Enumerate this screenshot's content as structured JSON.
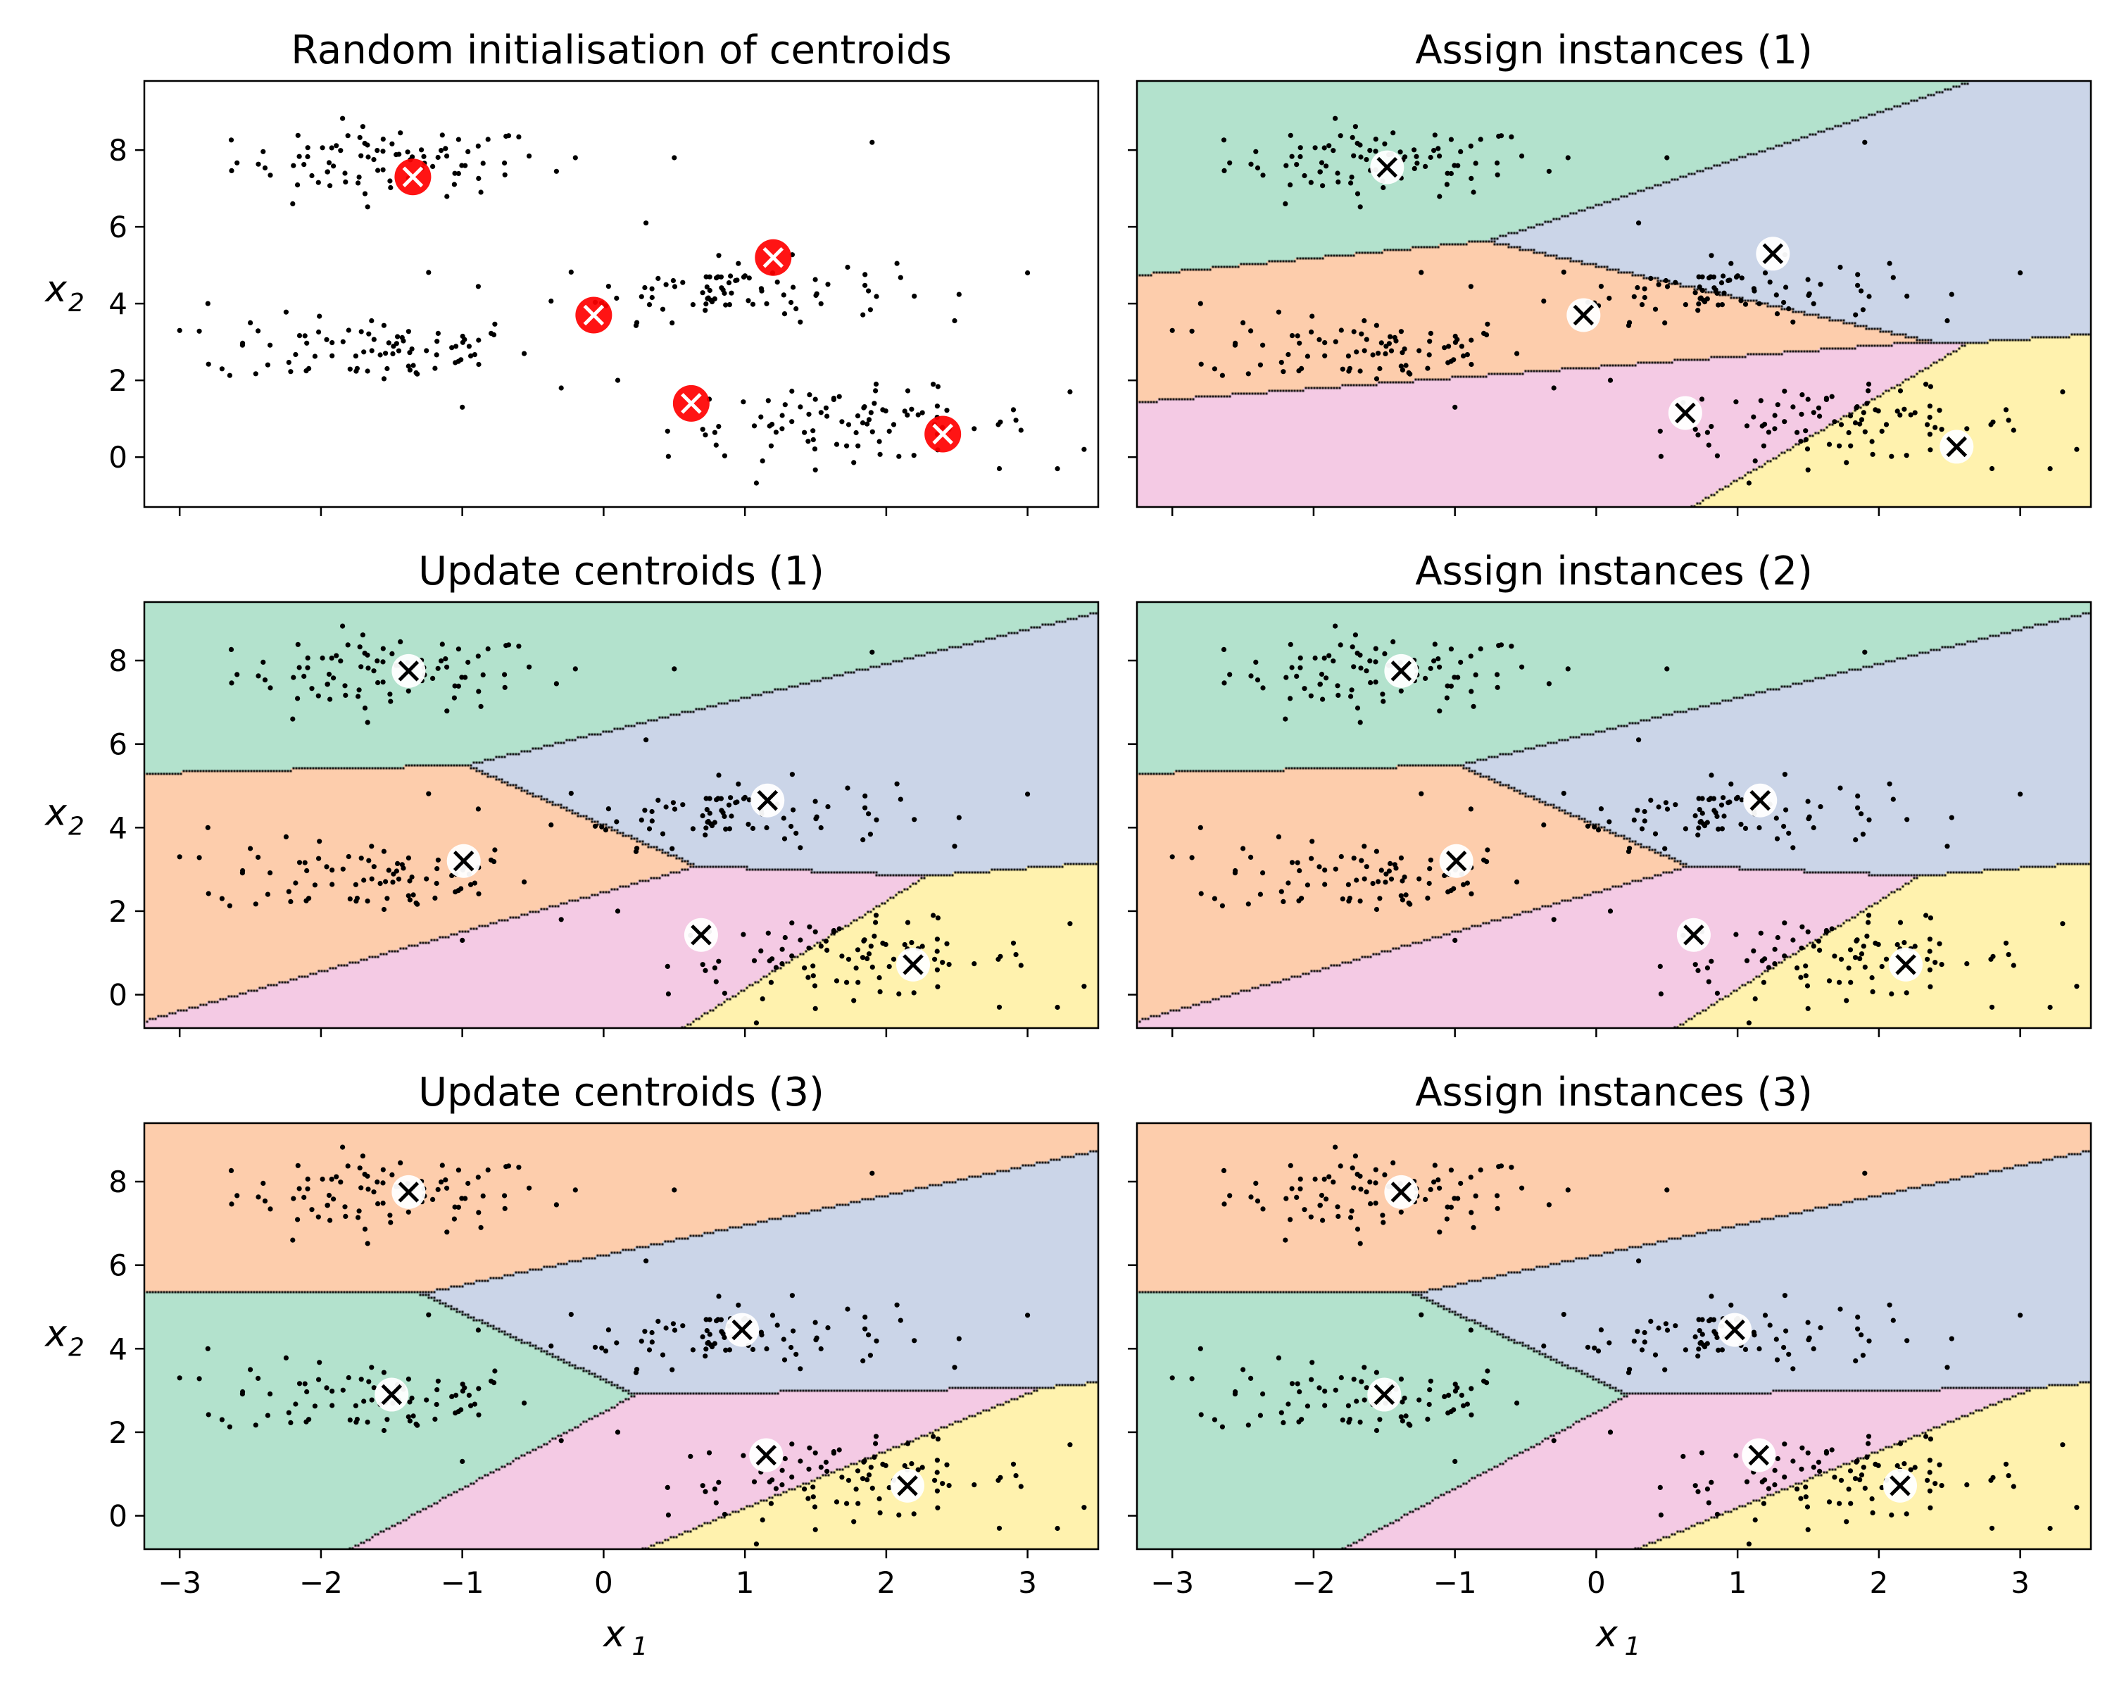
{
  "chart_data": {
    "type": "scatter",
    "colors": {
      "region_0": "#b3e2cd",
      "region_1": "#fdcdac",
      "region_2": "#cbd5e8",
      "region_3": "#f4cae4",
      "region_4": "#fff2ae",
      "region_5": "#cccccc",
      "points": "#000000",
      "init_centroid": "#ff0000",
      "centroid_marker": "#ffffff",
      "boundary": "#000000"
    },
    "x_axis": {
      "label": "x",
      "label_sub": "1",
      "ticks": [
        -3,
        -2,
        -1,
        0,
        1,
        2,
        3
      ],
      "tick_labels": [
        "−3",
        "−2",
        "−1",
        "0",
        "1",
        "2",
        "3"
      ],
      "range": [
        -3.25,
        3.5
      ]
    },
    "y_axis": {
      "label": "x",
      "label_sub": "2",
      "ticks": [
        0,
        2,
        4,
        6,
        8
      ],
      "tick_labels": [
        "0",
        "2",
        "4",
        "6",
        "8"
      ]
    },
    "panels": [
      {
        "title": "Random initialisation of centroids",
        "ylim": [
          -1.3,
          9.8
        ],
        "shaded": false,
        "centroids": [
          [
            -1.35,
            7.3
          ],
          [
            -0.07,
            3.7
          ],
          [
            1.2,
            5.2
          ],
          [
            0.62,
            1.4
          ],
          [
            2.4,
            0.6
          ]
        ]
      },
      {
        "title": "Assign instances (1)",
        "ylim": [
          -1.3,
          9.8
        ],
        "shaded": true,
        "centroids": [
          [
            -1.48,
            7.55
          ],
          [
            -0.09,
            3.7
          ],
          [
            1.25,
            5.3
          ],
          [
            0.63,
            1.15
          ],
          [
            2.55,
            0.27
          ]
        ]
      },
      {
        "title": "Update centroids (1)",
        "ylim": [
          -0.8,
          9.4
        ],
        "shaded": true,
        "centroids": [
          [
            -1.38,
            7.75
          ],
          [
            -0.99,
            3.2
          ],
          [
            1.16,
            4.65
          ],
          [
            0.69,
            1.43
          ],
          [
            2.19,
            0.72
          ]
        ]
      },
      {
        "title": "Assign instances (2)",
        "ylim": [
          -0.8,
          9.4
        ],
        "shaded": true,
        "centroids": [
          [
            -1.38,
            7.75
          ],
          [
            -0.99,
            3.2
          ],
          [
            1.16,
            4.65
          ],
          [
            0.69,
            1.43
          ],
          [
            2.19,
            0.72
          ]
        ]
      },
      {
        "title": "Update centroids (3)",
        "ylim": [
          -0.8,
          9.4
        ],
        "shaded": true,
        "centroids": [
          [
            -1.5,
            2.9
          ],
          [
            -1.38,
            7.75
          ],
          [
            0.98,
            4.45
          ],
          [
            1.15,
            1.45
          ],
          [
            2.15,
            0.72
          ]
        ]
      },
      {
        "title": "Assign instances (3)",
        "ylim": [
          -0.8,
          9.4
        ],
        "shaded": true,
        "centroids": [
          [
            -1.5,
            2.9
          ],
          [
            -1.38,
            7.75
          ],
          [
            0.98,
            4.45
          ],
          [
            1.15,
            1.45
          ],
          [
            2.15,
            0.72
          ]
        ]
      }
    ],
    "clusters": [
      {
        "center": [
          -1.5,
          7.7
        ],
        "spread": [
          0.55,
          0.45
        ],
        "count": 85
      },
      {
        "center": [
          -1.6,
          2.8
        ],
        "spread": [
          0.55,
          0.45
        ],
        "count": 80
      },
      {
        "center": [
          0.85,
          4.35
        ],
        "spread": [
          0.6,
          0.4
        ],
        "count": 85
      },
      {
        "center": [
          1.75,
          0.85
        ],
        "spread": [
          0.65,
          0.45
        ],
        "count": 90
      }
    ],
    "sparse_points": [
      [
        -3.0,
        3.3
      ],
      [
        -2.7,
        2.3
      ],
      [
        -2.5,
        3.5
      ],
      [
        -0.2,
        7.8
      ],
      [
        0.5,
        7.8
      ],
      [
        1.9,
        8.2
      ],
      [
        3.3,
        1.7
      ],
      [
        3.4,
        0.2
      ],
      [
        2.8,
        -0.3
      ],
      [
        -0.3,
        1.8
      ],
      [
        -1.0,
        1.3
      ],
      [
        0.3,
        6.1
      ],
      [
        -2.2,
        6.6
      ],
      [
        0.1,
        2.0
      ],
      [
        3.0,
        4.8
      ],
      [
        -2.8,
        4.0
      ]
    ]
  }
}
